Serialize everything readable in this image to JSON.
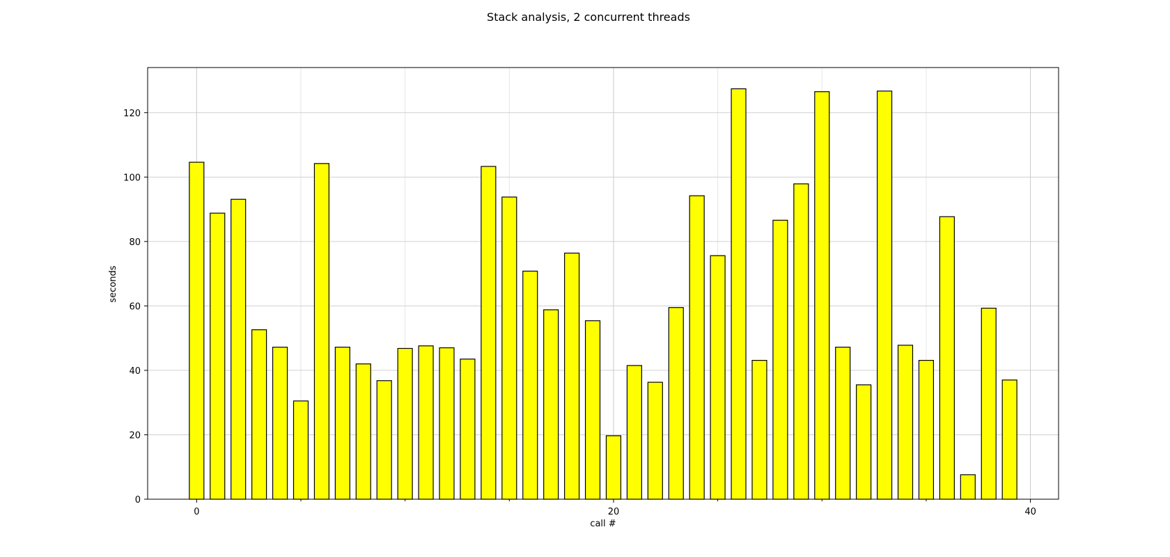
{
  "chart_data": {
    "type": "bar",
    "title": "Stack analysis, 2 concurrent threads",
    "xlabel": "call #",
    "ylabel": "seconds",
    "x": [
      0,
      1,
      2,
      3,
      4,
      5,
      6,
      7,
      8,
      9,
      10,
      11,
      12,
      13,
      14,
      15,
      16,
      17,
      18,
      19,
      20,
      21,
      22,
      23,
      24,
      25,
      26,
      27,
      28,
      29,
      30,
      31,
      32,
      33,
      34,
      35,
      36,
      37,
      38,
      39
    ],
    "values": [
      104.6,
      88.8,
      93.1,
      52.6,
      47.2,
      30.5,
      104.2,
      47.2,
      42.0,
      36.8,
      46.8,
      47.6,
      47.0,
      43.5,
      103.3,
      93.8,
      70.8,
      58.8,
      76.4,
      55.4,
      19.7,
      41.5,
      36.3,
      59.5,
      94.2,
      75.6,
      127.4,
      43.1,
      86.6,
      97.9,
      126.5,
      47.2,
      35.5,
      126.7,
      47.8,
      43.1,
      87.7,
      7.6,
      59.3,
      37.0
    ],
    "xlim": [
      -2.35,
      41.35
    ],
    "ylim": [
      0,
      134
    ],
    "xticks": [
      0,
      20,
      40
    ],
    "yticks": [
      0,
      20,
      40,
      60,
      80,
      100,
      120
    ],
    "bar_width": 0.7,
    "bar_color": "#ffff00",
    "edge_color": "#000000",
    "grid": true,
    "legend": false
  }
}
